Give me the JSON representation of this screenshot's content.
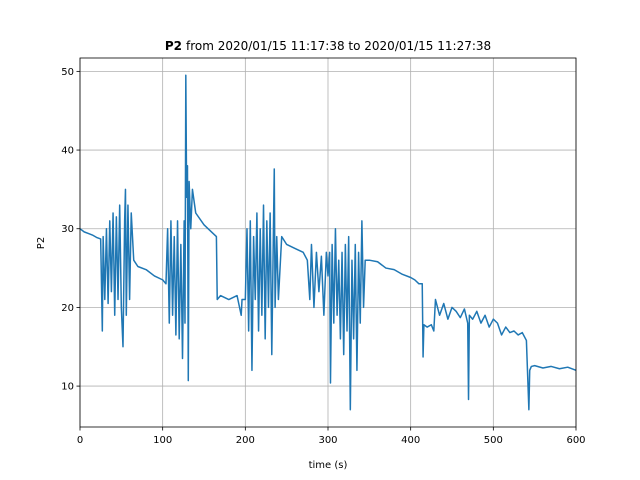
{
  "chart_data": {
    "type": "line",
    "title": [
      "P2",
      "from 2020/01/15 11:17:38 to 2020/01/15 11:27:38"
    ],
    "xlabel": "time (s)",
    "ylabel": "P2",
    "xlim": [
      0,
      600
    ],
    "xticks": [
      0,
      100,
      200,
      300,
      400,
      500,
      600
    ],
    "ylim": [
      4.8,
      51.7
    ],
    "yticks": [
      10,
      20,
      30,
      40,
      50
    ],
    "grid": true,
    "series": [
      {
        "color": "#1f77b4",
        "x": [
          0,
          5,
          10,
          15,
          20,
          25,
          27,
          28,
          30,
          32,
          34,
          36,
          38,
          40,
          42,
          44,
          46,
          48,
          50,
          52,
          54,
          55,
          56,
          58,
          60,
          62,
          65,
          70,
          80,
          90,
          100,
          104,
          106,
          108,
          110,
          112,
          114,
          116,
          118,
          120,
          122,
          124,
          126,
          127,
          128,
          129,
          130,
          131,
          132,
          134,
          136,
          140,
          150,
          160,
          165,
          166,
          170,
          180,
          190,
          195,
          196,
          200,
          202,
          204,
          206,
          208,
          210,
          212,
          214,
          216,
          218,
          220,
          222,
          224,
          226,
          228,
          230,
          232,
          234,
          235,
          236,
          238,
          240,
          244,
          250,
          260,
          270,
          275,
          278,
          280,
          283,
          286,
          289,
          292,
          295,
          298,
          300,
          302,
          303,
          305,
          307,
          309,
          311,
          313,
          315,
          317,
          319,
          321,
          323,
          325,
          327,
          329,
          331,
          333,
          335,
          337,
          339,
          341,
          343,
          345,
          350,
          360,
          370,
          380,
          390,
          400,
          405,
          410,
          414,
          415,
          416,
          420,
          425,
          428,
          430,
          435,
          440,
          445,
          450,
          455,
          460,
          465,
          469,
          470,
          471,
          475,
          480,
          485,
          490,
          495,
          500,
          505,
          510,
          515,
          520,
          525,
          530,
          535,
          540,
          543,
          544,
          546,
          550,
          560,
          570,
          580,
          590,
          600
        ],
        "values": [
          30,
          29.6,
          29.4,
          29.2,
          28.9,
          28.7,
          17,
          29,
          21,
          30,
          20.5,
          31,
          22,
          32,
          19,
          31.5,
          21,
          33,
          20,
          15,
          31,
          35,
          19,
          33,
          21,
          32,
          26,
          25.2,
          24.8,
          24,
          23.5,
          23,
          30,
          18,
          31,
          19,
          29,
          16.5,
          31,
          16,
          28,
          13.5,
          31,
          18,
          49.5,
          34,
          38,
          10.7,
          36,
          30,
          35,
          32,
          30.5,
          29.5,
          29,
          21,
          21.5,
          21,
          21.5,
          19,
          21,
          21,
          30,
          17,
          31,
          12,
          29,
          21,
          32,
          17,
          30,
          19,
          33,
          16,
          31,
          20,
          32,
          14,
          30,
          37.6,
          20,
          29,
          21,
          29,
          28,
          27.5,
          27,
          26,
          21,
          28,
          20,
          27,
          22,
          26.5,
          19,
          27,
          24,
          27,
          10.4,
          28,
          18,
          30,
          19,
          26,
          16,
          27,
          14,
          28,
          17,
          29,
          7,
          26,
          16,
          28,
          12,
          27,
          18,
          31,
          20,
          26,
          26,
          25.8,
          25,
          24.8,
          24.2,
          23.8,
          23.5,
          23,
          23,
          13.7,
          17.8,
          17.5,
          17.8,
          17,
          21,
          19,
          20.5,
          18.5,
          20,
          19.5,
          18.7,
          19.8,
          18,
          8.3,
          19,
          18.5,
          19.5,
          18,
          19,
          17.5,
          18.5,
          18,
          16.5,
          17.5,
          16.8,
          17,
          16.5,
          16.8,
          15.8,
          7,
          12,
          12.5,
          12.6,
          12.3,
          12.5,
          12.2,
          12.4,
          12
        ]
      }
    ]
  }
}
